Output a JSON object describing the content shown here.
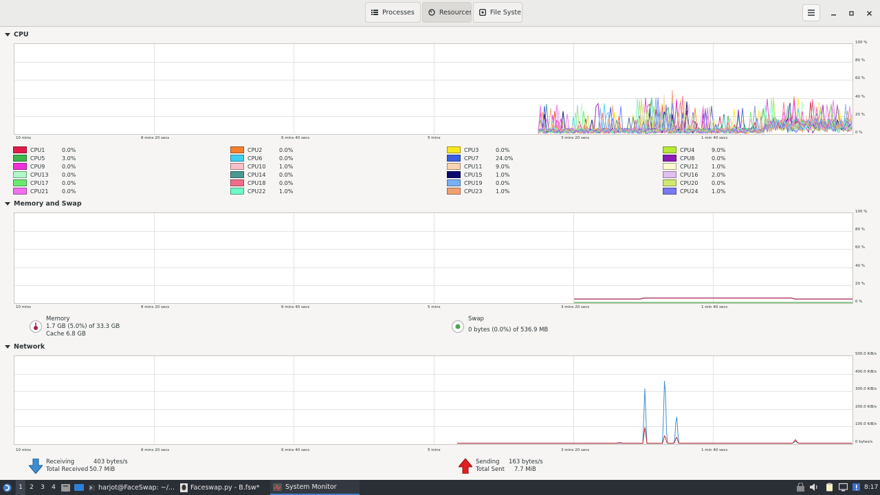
{
  "header": {
    "tabs": [
      {
        "label": "Processes",
        "icon": "list-icon",
        "active": false
      },
      {
        "label": "Resources",
        "icon": "gauge-icon",
        "active": true
      },
      {
        "label": "File Syste",
        "icon": "disk-icon",
        "active": false
      }
    ]
  },
  "cpu": {
    "title": "CPU",
    "y_ticks": [
      "100 %",
      "80 %",
      "60 %",
      "40 %",
      "20 %",
      "0 %"
    ],
    "x_ticks": [
      "10 mins",
      "8 mins 20 secs",
      "6 mins 40 secs",
      "5 mins",
      "3 mins 20 secs",
      "1 min 40 secs"
    ],
    "legend": [
      {
        "name": "CPU1",
        "value": "0.0%",
        "color": "#e01b4c"
      },
      {
        "name": "CPU2",
        "value": "0.0%",
        "color": "#f57f30"
      },
      {
        "name": "CPU3",
        "value": "0.0%",
        "color": "#f8e71c"
      },
      {
        "name": "CPU4",
        "value": "9.0%",
        "color": "#b8e834"
      },
      {
        "name": "CPU5",
        "value": "3.0%",
        "color": "#3db54a"
      },
      {
        "name": "CPU6",
        "value": "0.0%",
        "color": "#3fd0f0"
      },
      {
        "name": "CPU7",
        "value": "24.0%",
        "color": "#3b5fe0"
      },
      {
        "name": "CPU8",
        "value": "0.0%",
        "color": "#8a1db8"
      },
      {
        "name": "CPU9",
        "value": "0.0%",
        "color": "#f030d8"
      },
      {
        "name": "CPU10",
        "value": "1.0%",
        "color": "#f8c0c8"
      },
      {
        "name": "CPU11",
        "value": "9.0%",
        "color": "#f8d4b0"
      },
      {
        "name": "CPU12",
        "value": "1.0%",
        "color": "#fcf8d0"
      },
      {
        "name": "CPU13",
        "value": "0.0%",
        "color": "#b0f8c8"
      },
      {
        "name": "CPU14",
        "value": "0.0%",
        "color": "#4a9890"
      },
      {
        "name": "CPU15",
        "value": "1.0%",
        "color": "#0c0a70"
      },
      {
        "name": "CPU16",
        "value": "2.0%",
        "color": "#e0c0f0"
      },
      {
        "name": "CPU17",
        "value": "0.0%",
        "color": "#6ae870"
      },
      {
        "name": "CPU18",
        "value": "0.0%",
        "color": "#f06c8a"
      },
      {
        "name": "CPU19",
        "value": "0.0%",
        "color": "#78b0f8"
      },
      {
        "name": "CPU20",
        "value": "0.0%",
        "color": "#d0e870"
      },
      {
        "name": "CPU21",
        "value": "0.0%",
        "color": "#f070f0"
      },
      {
        "name": "CPU22",
        "value": "1.0%",
        "color": "#70f8c8"
      },
      {
        "name": "CPU23",
        "value": "1.0%",
        "color": "#f0a070"
      },
      {
        "name": "CPU24",
        "value": "1.0%",
        "color": "#7878f0"
      }
    ]
  },
  "memory": {
    "title": "Memory and Swap",
    "y_ticks": [
      "100 %",
      "80 %",
      "60 %",
      "40 %",
      "20 %",
      "0 %"
    ],
    "x_ticks": [
      "10 mins",
      "8 mins 20 secs",
      "6 mins 40 secs",
      "5 mins",
      "3 mins 20 secs",
      "1 min 40 secs"
    ],
    "mem_label": "Memory",
    "mem_used": "1.7 GB (5.0%) of 33.3 GB",
    "mem_cache": "Cache 6.8 GB",
    "swap_label": "Swap",
    "swap_used": "0 bytes (0.0%) of 536.9 MB",
    "mem_color": "#a02050",
    "swap_color": "#4aa84a"
  },
  "network": {
    "title": "Network",
    "y_ticks": [
      "500.0 KiB/s",
      "400.0 KiB/s",
      "300.0 KiB/s",
      "200.0 KiB/s",
      "100.0 KiB/s",
      "0 bytes/s"
    ],
    "x_ticks": [
      "10 mins",
      "8 mins 20 secs",
      "6 mins 40 secs",
      "5 mins",
      "3 mins 20 secs",
      "1 min 40 secs"
    ],
    "receiving_label": "Receiving",
    "receiving_value": "403 bytes/s",
    "total_received_label": "Total Received",
    "total_received_value": "50.7 MiB",
    "sending_label": "Sending",
    "sending_value": "163 bytes/s",
    "total_sent_label": "Total Sent",
    "total_sent_value": "7.7 MiB",
    "recv_color": "#3b8fd0",
    "send_color": "#c82020"
  },
  "taskbar": {
    "workspaces": [
      "1",
      "2",
      "3",
      "4"
    ],
    "tasks": [
      {
        "label": "harjot@FaceSwap: ~/...",
        "active": false
      },
      {
        "label": "Faceswap.py - B.fsw*",
        "active": false
      },
      {
        "label": "System Monitor",
        "active": true
      }
    ],
    "clock": "8:17"
  }
}
